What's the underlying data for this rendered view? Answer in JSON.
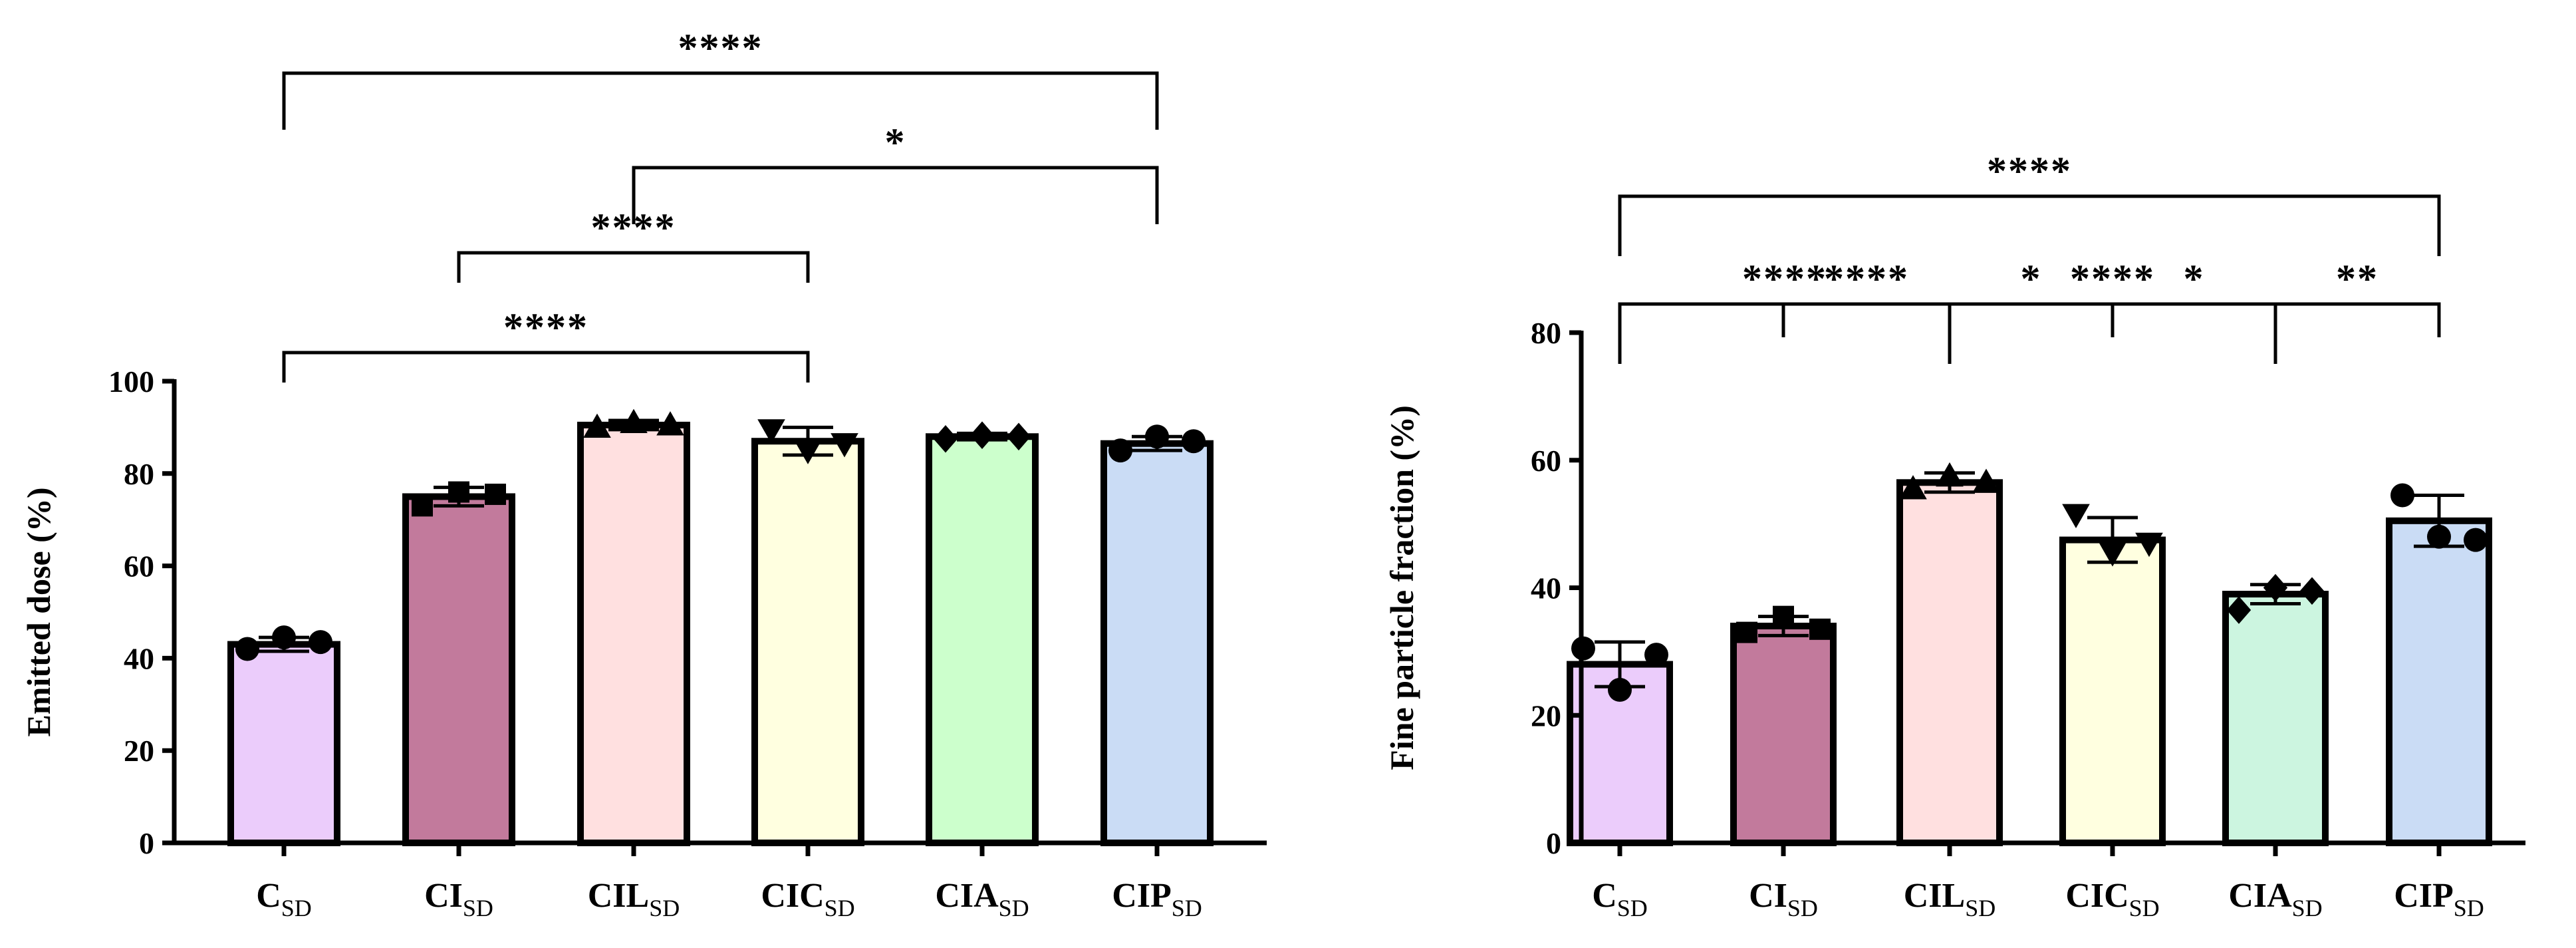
{
  "chart_data": [
    {
      "id": "left",
      "type": "bar",
      "title": "",
      "ylabel": "Emitted dose (%)",
      "xlabel": "",
      "ylim": [
        0,
        100
      ],
      "yticks": [
        0,
        20,
        40,
        60,
        80,
        100
      ],
      "categories": [
        {
          "main": "C",
          "sub": "SD"
        },
        {
          "main": "CI",
          "sub": "SD"
        },
        {
          "main": "CIL",
          "sub": "SD"
        },
        {
          "main": "CIC",
          "sub": "SD"
        },
        {
          "main": "CIA",
          "sub": "SD"
        },
        {
          "main": "CIP",
          "sub": "SD"
        }
      ],
      "values": [
        43,
        75,
        90.5,
        87,
        88,
        86.5
      ],
      "errors": [
        1.5,
        2,
        1,
        3,
        0.7,
        1.5
      ],
      "colors": [
        "#ebccfb",
        "#c27a9c",
        "#ffe0e0",
        "#ffffe0",
        "#ccffcc",
        "#cadcf5"
      ],
      "markers": [
        "circle",
        "square",
        "triangle",
        "triangle-down",
        "diamond",
        "circle"
      ],
      "points": [
        [
          42,
          44.5,
          43.5
        ],
        [
          73,
          76,
          75.5
        ],
        [
          90,
          91,
          90.5
        ],
        [
          89.5,
          85,
          86.5
        ],
        [
          87.5,
          88.3,
          88
        ],
        [
          85,
          88,
          87
        ]
      ],
      "significance": [
        {
          "from": 0,
          "to": 5,
          "label": "****",
          "level": 3
        },
        {
          "from": 2,
          "to": 5,
          "label": "*",
          "level": 2
        },
        {
          "from": 1,
          "to": 3,
          "label": "****",
          "level": 1
        },
        {
          "from": 0,
          "to": 3,
          "label": "****",
          "level": 0
        }
      ]
    },
    {
      "id": "right",
      "type": "bar",
      "title": "",
      "ylabel": "Fine particle fraction (%)",
      "xlabel": "",
      "ylim": [
        0,
        80
      ],
      "yticks": [
        0,
        20,
        40,
        60,
        80
      ],
      "categories": [
        {
          "main": "C",
          "sub": "SD"
        },
        {
          "main": "CI",
          "sub": "SD"
        },
        {
          "main": "CIL",
          "sub": "SD"
        },
        {
          "main": "CIC",
          "sub": "SD"
        },
        {
          "main": "CIA",
          "sub": "SD"
        },
        {
          "main": "CIP",
          "sub": "SD"
        }
      ],
      "values": [
        28,
        34,
        56.5,
        47.5,
        39,
        50.5
      ],
      "errors": [
        3.5,
        1.5,
        1.5,
        3.5,
        1.5,
        4
      ],
      "colors": [
        "#ebccfb",
        "#c27a9c",
        "#ffe0e0",
        "#ffffe0",
        "#ccf5e0",
        "#cadcf5"
      ],
      "markers": [
        "circle",
        "square",
        "triangle",
        "triangle-down",
        "diamond",
        "circle"
      ],
      "points": [
        [
          30.5,
          24,
          29.5
        ],
        [
          33,
          35.5,
          33.5
        ],
        [
          55.5,
          57.5,
          56.5
        ],
        [
          51.5,
          45.5,
          47
        ],
        [
          36.5,
          40,
          39.5
        ],
        [
          54.5,
          48,
          47.5
        ]
      ],
      "significance": [
        {
          "from": 0,
          "to": 5,
          "label": "****",
          "level": 3
        },
        {
          "from": 0,
          "to": 2,
          "label": "****",
          "level": 2
        },
        {
          "from": 2,
          "to": 4,
          "label": "****",
          "level": 2
        },
        {
          "from": 1,
          "to": 2,
          "label": "****",
          "level": 1
        },
        {
          "from": 2,
          "to": 3,
          "label": "*",
          "level": 1
        },
        {
          "from": 3,
          "to": 4,
          "label": "*",
          "level": 1
        },
        {
          "from": 4,
          "to": 5,
          "label": "**",
          "level": 1
        }
      ]
    }
  ]
}
